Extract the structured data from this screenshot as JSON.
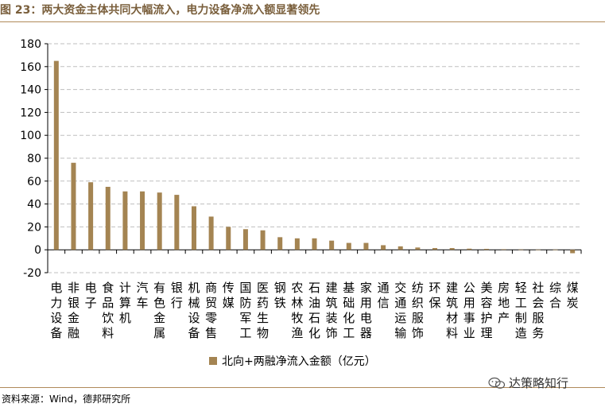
{
  "figure_title": "图 23：两大资金主体共同大幅流入，电力设备净流入额显著领先",
  "source": "资料来源：Wind，德邦研究所",
  "watermark": "达策略知行",
  "colors": {
    "bar": "#a48452",
    "grid": "#bfbfbf",
    "title": "#7a5f3c",
    "rule": "#b08a5a"
  },
  "chart_data": {
    "type": "bar",
    "title": "",
    "xlabel": "",
    "ylabel": "",
    "ylim": [
      -20,
      180
    ],
    "yticks": [
      -20,
      0,
      20,
      40,
      60,
      80,
      100,
      120,
      140,
      160,
      180
    ],
    "grid": true,
    "legend_position": "bottom",
    "categories": [
      "电力设备",
      "非银金融",
      "电子",
      "食品饮料",
      "计算机",
      "汽车",
      "有色金属",
      "银行",
      "机械设备",
      "商贸零售",
      "传媒",
      "国防军工",
      "医药生物",
      "钢铁",
      "农林牧渔",
      "石油石化",
      "建筑装饰",
      "基础化工",
      "家用电器",
      "通信",
      "交通运输",
      "纺织服饰",
      "环保",
      "建筑材料",
      "公用事业",
      "美容护理",
      "房地产",
      "轻工制造",
      "社会服务",
      "综合",
      "煤炭"
    ],
    "series": [
      {
        "name": "北向+两融净流入金额（亿元）",
        "values": [
          165,
          76,
          59,
          55,
          51,
          51,
          50,
          48,
          38,
          29,
          20,
          18,
          17,
          11,
          10,
          10,
          8,
          6,
          6,
          4,
          3,
          2,
          1.5,
          1.5,
          1,
          0.8,
          0.5,
          0.3,
          0.2,
          0.2,
          -3
        ]
      }
    ]
  }
}
